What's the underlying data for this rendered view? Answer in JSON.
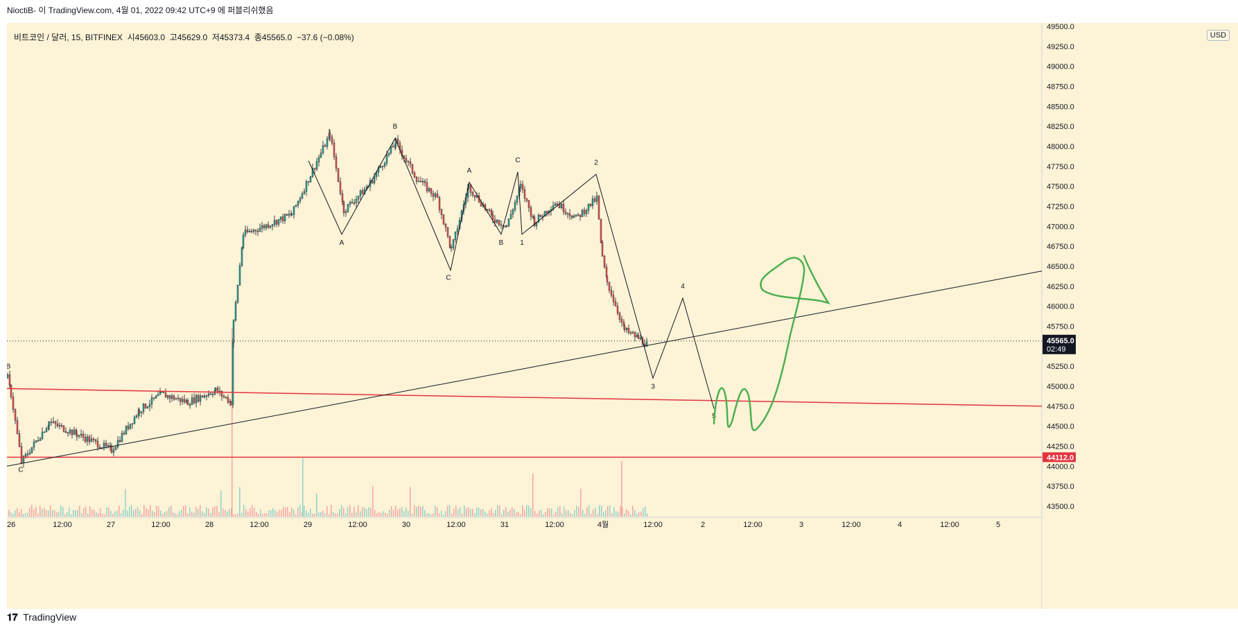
{
  "header": {
    "text": "NioctiB- 이 TradingView.com, 4월 01, 2022 09:42 UTC+9 에 퍼블리쉬했음"
  },
  "legend": {
    "symbol": "비트코인 / 달러, 15, BITFINEX",
    "open": "시45603.0",
    "high": "고45629.0",
    "low": "저45373.4",
    "close": "종45565.0",
    "change": "−37.6 (−0.08%)"
  },
  "currency": "USD",
  "price_axis": {
    "ticks": [
      "49500.0",
      "49250.0",
      "49000.0",
      "48750.0",
      "48500.0",
      "48250.0",
      "48000.0",
      "47750.0",
      "47500.0",
      "47250.0",
      "47000.0",
      "46750.0",
      "46500.0",
      "46250.0",
      "46000.0",
      "45750.0",
      "45500.0",
      "45250.0",
      "45000.0",
      "44750.0",
      "44500.0",
      "44250.0",
      "44000.0",
      "43750.0",
      "43500.0"
    ],
    "current_price": "45565.0",
    "countdown": "02:49",
    "level_price": "44112.0"
  },
  "time_axis": {
    "ticks": [
      "26",
      "12:00",
      "27",
      "12:00",
      "28",
      "12:00",
      "29",
      "12:00",
      "30",
      "12:00",
      "31",
      "12:00",
      "4월",
      "12:00",
      "2",
      "12:00",
      "3",
      "12:00",
      "4",
      "12:00",
      "5"
    ]
  },
  "wave_labels": [
    "B",
    "C",
    "A",
    "B",
    "C",
    "A",
    "C",
    "B",
    "1",
    "2",
    "3",
    "4",
    "5"
  ],
  "colors": {
    "background": "#fdf3d6",
    "up": "#26a69a",
    "down": "#ef5350",
    "level_line": "#e5323f",
    "drawing": "#4caf50",
    "price_label": "#131722"
  },
  "footer": {
    "brand": "TradingView"
  }
}
